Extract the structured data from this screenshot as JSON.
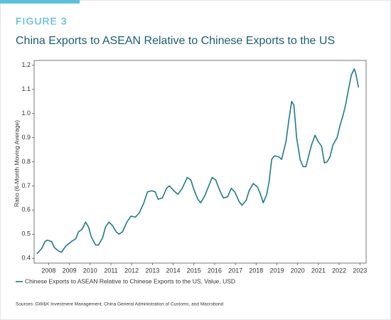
{
  "chart_data": {
    "type": "line",
    "figure_label": "FIGURE 3",
    "title": "China Exports to ASEAN Relative to Chinese Exports to the US",
    "y_label": "Ratio (6-Month Moving Average)",
    "source": "Sources: GW&K Investment Management, China General Administration of Customs, and Macrobond",
    "x": [
      2007.45,
      2007.66,
      2007.83,
      2007.93,
      2008.14,
      2008.27,
      2008.48,
      2008.62,
      2008.82,
      2009.1,
      2009.3,
      2009.44,
      2009.61,
      2009.78,
      2009.92,
      2010.05,
      2010.26,
      2010.4,
      2010.6,
      2010.74,
      2010.91,
      2011.08,
      2011.25,
      2011.39,
      2011.56,
      2011.77,
      2011.97,
      2012.18,
      2012.38,
      2012.59,
      2012.76,
      2012.97,
      2013.14,
      2013.27,
      2013.48,
      2013.68,
      2013.82,
      2014.03,
      2014.23,
      2014.44,
      2014.68,
      2014.85,
      2015.02,
      2015.19,
      2015.33,
      2015.53,
      2015.67,
      2015.88,
      2016.05,
      2016.25,
      2016.42,
      2016.63,
      2016.8,
      2016.97,
      2017.18,
      2017.32,
      2017.52,
      2017.66,
      2017.86,
      2018.07,
      2018.21,
      2018.34,
      2018.51,
      2018.62,
      2018.75,
      2018.89,
      2019.1,
      2019.23,
      2019.44,
      2019.58,
      2019.71,
      2019.82,
      2019.95,
      2020.12,
      2020.26,
      2020.4,
      2020.53,
      2020.67,
      2020.84,
      2020.98,
      2021.15,
      2021.29,
      2021.42,
      2021.56,
      2021.7,
      2021.9,
      2022.04,
      2022.18,
      2022.32,
      2022.45,
      2022.59,
      2022.73,
      2022.79,
      2022.93
    ],
    "series": [
      {
        "name": "Chinese Exports to ASEAN Relative to Chinese Exports to the US, Value, USD",
        "color": "#1f7a8c",
        "values": [
          0.42,
          0.44,
          0.47,
          0.475,
          0.47,
          0.445,
          0.43,
          0.425,
          0.45,
          0.47,
          0.48,
          0.51,
          0.52,
          0.55,
          0.53,
          0.49,
          0.455,
          0.455,
          0.485,
          0.53,
          0.55,
          0.535,
          0.51,
          0.5,
          0.51,
          0.55,
          0.575,
          0.57,
          0.59,
          0.63,
          0.675,
          0.68,
          0.675,
          0.645,
          0.65,
          0.69,
          0.7,
          0.68,
          0.665,
          0.69,
          0.735,
          0.725,
          0.68,
          0.645,
          0.63,
          0.66,
          0.69,
          0.735,
          0.725,
          0.68,
          0.65,
          0.655,
          0.69,
          0.675,
          0.635,
          0.62,
          0.64,
          0.68,
          0.71,
          0.695,
          0.665,
          0.63,
          0.665,
          0.715,
          0.81,
          0.825,
          0.82,
          0.81,
          0.885,
          0.975,
          1.05,
          1.035,
          0.9,
          0.81,
          0.78,
          0.78,
          0.825,
          0.87,
          0.91,
          0.885,
          0.865,
          0.795,
          0.8,
          0.82,
          0.87,
          0.9,
          0.95,
          0.99,
          1.04,
          1.1,
          1.16,
          1.185,
          1.17,
          1.11
        ]
      }
    ],
    "xlim": [
      2007.3,
      2023.3
    ],
    "xticks": [
      2008,
      2009,
      2010,
      2011,
      2012,
      2013,
      2014,
      2015,
      2016,
      2017,
      2018,
      2019,
      2020,
      2021,
      2022,
      2023
    ],
    "ylim": [
      0.38,
      1.22
    ],
    "yticks": [
      0.4,
      0.5,
      0.6,
      0.7,
      0.8,
      0.9,
      {
        "value": 1,
        "label": "1.0"
      },
      1.1,
      1.2
    ],
    "grid": false
  }
}
